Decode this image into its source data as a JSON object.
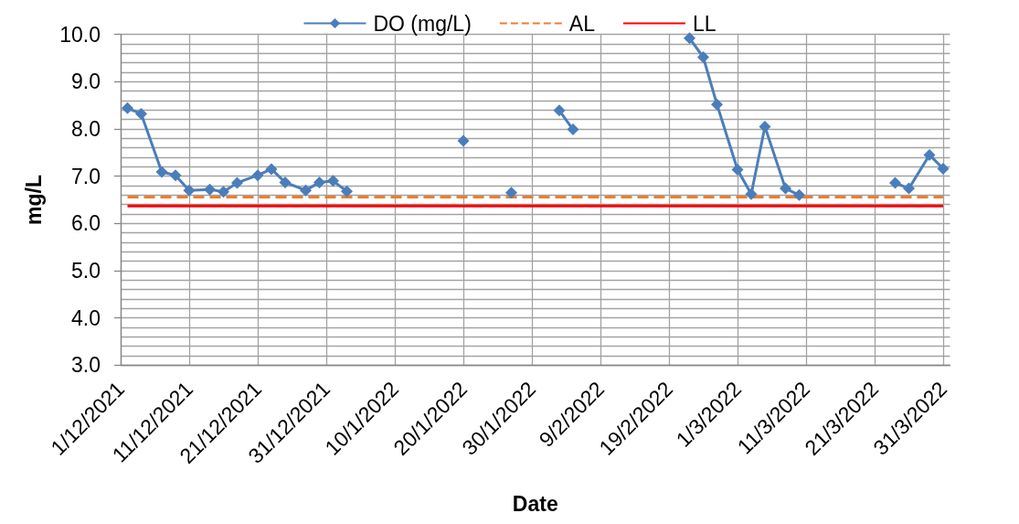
{
  "chart_data": {
    "type": "line",
    "xlabel": "Date",
    "ylabel": "mg/L",
    "series": [
      {
        "name": "DO (mg/L)",
        "color": "#4a7ebb",
        "marker": "diamond",
        "line_style": "solid",
        "x": [
          "2021-12-02",
          "2021-12-04",
          "2021-12-07",
          "2021-12-09",
          "2021-12-11",
          "2021-12-14",
          "2021-12-16",
          "2021-12-18",
          "2021-12-21",
          "2021-12-23",
          "2021-12-25",
          "2021-12-28",
          "2021-12-30",
          "2022-01-01",
          "2022-01-03",
          "2022-01-10",
          "2022-01-20",
          "2022-01-24",
          "2022-01-27",
          "2022-01-31",
          "2022-02-03",
          "2022-02-05",
          "2022-02-14",
          "2022-02-22",
          "2022-02-24",
          "2022-02-26",
          "2022-03-01",
          "2022-03-03",
          "2022-03-05",
          "2022-03-08",
          "2022-03-10",
          "2022-03-17",
          "2022-03-24",
          "2022-03-26",
          "2022-03-29",
          "2022-03-31"
        ],
        "values": [
          8.44,
          8.32,
          7.09,
          7.02,
          6.7,
          6.72,
          6.67,
          6.86,
          7.02,
          7.15,
          6.87,
          6.7,
          6.87,
          6.9,
          6.68,
          null,
          7.75,
          null,
          6.65,
          null,
          8.39,
          7.99,
          null,
          9.92,
          9.52,
          8.52,
          7.14,
          6.62,
          8.05,
          6.74,
          6.6,
          null,
          6.86,
          6.74,
          7.45,
          7.16
        ]
      },
      {
        "name": "AL",
        "color": "#ed7d31",
        "marker": "none",
        "line_style": "dashed",
        "x": [
          "2021-12-02",
          "2022-03-31"
        ],
        "values": [
          6.56,
          6.56
        ]
      },
      {
        "name": "LL",
        "color": "#ff0000",
        "marker": "none",
        "line_style": "solid",
        "x": [
          "2021-12-02",
          "2022-03-31"
        ],
        "values": [
          6.37,
          6.37
        ]
      }
    ],
    "xlim": [
      "2021-12-01",
      "2022-04-01"
    ],
    "xticks": [
      {
        "value": "2021-12-01",
        "label": "1/12/2021"
      },
      {
        "value": "2021-12-11",
        "label": "11/12/2021"
      },
      {
        "value": "2021-12-21",
        "label": "21/12/2021"
      },
      {
        "value": "2021-12-31",
        "label": "31/12/2021"
      },
      {
        "value": "2022-01-10",
        "label": "10/1/2022"
      },
      {
        "value": "2022-01-20",
        "label": "20/1/2022"
      },
      {
        "value": "2022-01-30",
        "label": "30/1/2022"
      },
      {
        "value": "2022-02-09",
        "label": "9/2/2022"
      },
      {
        "value": "2022-02-19",
        "label": "19/2/2022"
      },
      {
        "value": "2022-03-01",
        "label": "1/3/2022"
      },
      {
        "value": "2022-03-11",
        "label": "11/3/2022"
      },
      {
        "value": "2022-03-21",
        "label": "21/3/2022"
      },
      {
        "value": "2022-03-31",
        "label": "31/3/2022"
      }
    ],
    "ylim": [
      3,
      10
    ],
    "yticks": [
      {
        "value": 3,
        "label": "3.0"
      },
      {
        "value": 3.2,
        "label": null
      },
      {
        "value": 3.4,
        "label": null
      },
      {
        "value": 3.6,
        "label": null
      },
      {
        "value": 3.8,
        "label": null
      },
      {
        "value": 4,
        "label": "4.0"
      },
      {
        "value": 4.2,
        "label": null
      },
      {
        "value": 4.4,
        "label": null
      },
      {
        "value": 4.6,
        "label": null
      },
      {
        "value": 4.8,
        "label": null
      },
      {
        "value": 5,
        "label": "5.0"
      },
      {
        "value": 5.2,
        "label": null
      },
      {
        "value": 5.4,
        "label": null
      },
      {
        "value": 5.6,
        "label": null
      },
      {
        "value": 5.8,
        "label": null
      },
      {
        "value": 6,
        "label": "6.0"
      },
      {
        "value": 6.2,
        "label": null
      },
      {
        "value": 6.4,
        "label": null
      },
      {
        "value": 6.6,
        "label": null
      },
      {
        "value": 6.8,
        "label": null
      },
      {
        "value": 7,
        "label": "7.0"
      },
      {
        "value": 7.2,
        "label": null
      },
      {
        "value": 7.4,
        "label": null
      },
      {
        "value": 7.6,
        "label": null
      },
      {
        "value": 7.8,
        "label": null
      },
      {
        "value": 8,
        "label": "8.0"
      },
      {
        "value": 8.2,
        "label": null
      },
      {
        "value": 8.4,
        "label": null
      },
      {
        "value": 8.6,
        "label": null
      },
      {
        "value": 8.8,
        "label": null
      },
      {
        "value": 9,
        "label": "9.0"
      },
      {
        "value": 9.2,
        "label": null
      },
      {
        "value": 9.4,
        "label": null
      },
      {
        "value": 9.6,
        "label": null
      },
      {
        "value": 9.8,
        "label": null
      },
      {
        "value": 10,
        "label": "10.0"
      }
    ],
    "grid": true,
    "legend": "top"
  }
}
